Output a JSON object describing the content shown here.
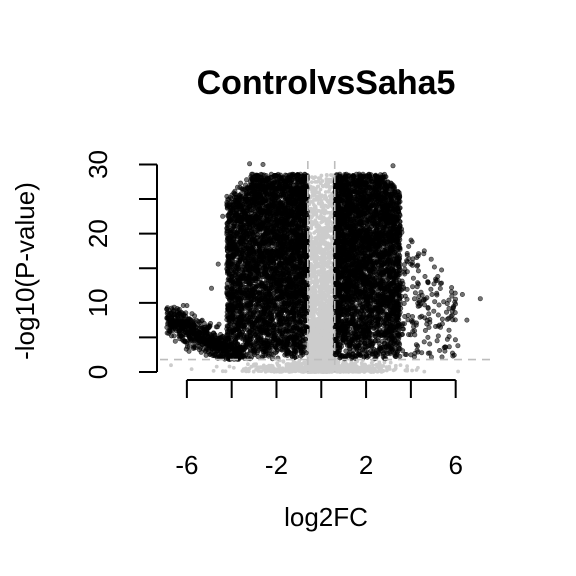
{
  "chart_data": {
    "type": "scatter",
    "title": "ControlvsSaha5",
    "xlabel": "log2FC",
    "ylabel": "-log10(P-value)",
    "xlim": [
      -7.2,
      7.8
    ],
    "ylim": [
      0,
      30.5
    ],
    "x_ticks": [
      -6,
      -4,
      -2,
      0,
      2,
      4,
      6
    ],
    "x_tick_labels": [
      "-6",
      "",
      "-2",
      "",
      "2",
      "",
      "6"
    ],
    "y_ticks": [
      0,
      5,
      10,
      15,
      20,
      25,
      30
    ],
    "y_tick_labels": [
      "0",
      "",
      "10",
      "",
      "20",
      "",
      "30"
    ],
    "thresholds": {
      "log2fc": [
        -0.6,
        0.6
      ],
      "neglog10p": 1.8
    },
    "colors": {
      "significant": "#000000",
      "not_significant": "#cccccc",
      "threshold_line": "#bdbdbd"
    },
    "series": [
      {
        "points": [
          [
            7.1,
            10.6
          ],
          [
            6.5,
            7.5
          ],
          [
            6.3,
            11.2
          ],
          [
            6.1,
            3.8
          ],
          [
            5.7,
            9.2
          ],
          [
            5.2,
            13.8
          ],
          [
            4.8,
            8.4
          ],
          [
            4.6,
            17.5
          ],
          [
            4.5,
            11.1
          ],
          [
            4.3,
            12.9
          ],
          [
            4.1,
            7.3
          ],
          [
            4.0,
            15.6
          ],
          [
            3.9,
            5.4
          ],
          [
            3.7,
            9.9
          ],
          [
            3.6,
            20.2
          ],
          [
            3.5,
            6.6
          ],
          [
            3.4,
            14.1
          ],
          [
            3.2,
            29.8
          ],
          [
            3.1,
            22.7
          ],
          [
            -6.9,
            9.1
          ],
          [
            -6.6,
            8.8
          ],
          [
            -6.3,
            8.4
          ],
          [
            -6.0,
            9.6
          ],
          [
            -5.9,
            7.7
          ],
          [
            -5.5,
            6.9
          ],
          [
            -5.1,
            6.0
          ],
          [
            -4.9,
            12.1
          ],
          [
            -4.6,
            15.6
          ],
          [
            -4.4,
            22.5
          ],
          [
            -4.0,
            25.0
          ],
          [
            -3.6,
            27.3
          ],
          [
            -3.2,
            30.1
          ],
          [
            -2.6,
            30.0
          ]
        ]
      }
    ]
  }
}
